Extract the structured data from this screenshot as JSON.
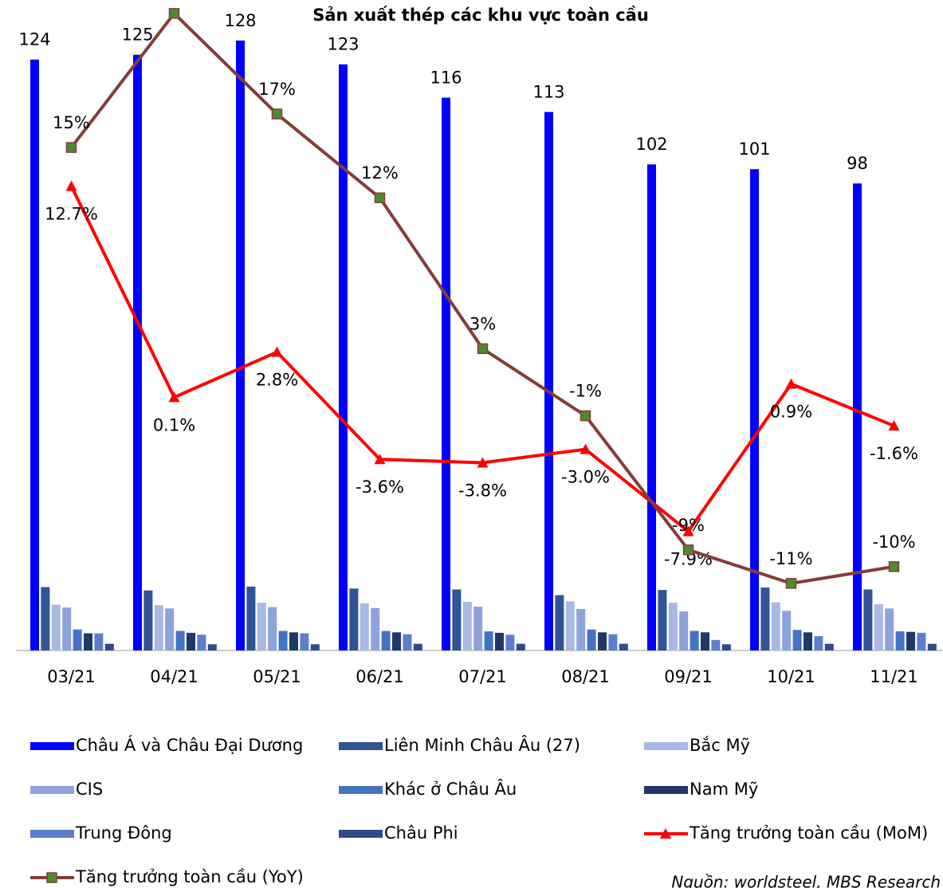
{
  "chart_data": {
    "type": "bar",
    "title": "Sản xuất thép các khu vực toàn cầu",
    "categories": [
      "03/21",
      "04/21",
      "05/21",
      "06/21",
      "07/21",
      "08/21",
      "09/21",
      "10/21",
      "11/21"
    ],
    "ylim": [
      0,
      136.5
    ],
    "y2lim": [
      -15,
      23.8
    ],
    "series": [
      {
        "name": "Châu Á và Châu Đại Dương",
        "type": "bar",
        "color": "#0000ff",
        "values": [
          124,
          125,
          128,
          123,
          116,
          113,
          102,
          101,
          98
        ]
      },
      {
        "name": "Liên Minh Châu Âu (27)",
        "type": "bar",
        "color": "#2f5597",
        "values": [
          13.3,
          12.6,
          13.4,
          13.0,
          12.8,
          11.6,
          12.7,
          13.2,
          12.8
        ]
      },
      {
        "name": "Bắc Mỹ",
        "type": "bar",
        "color": "#a9b8e4",
        "values": [
          9.6,
          9.5,
          10.0,
          9.9,
          10.2,
          10.3,
          10.0,
          10.1,
          9.7
        ]
      },
      {
        "name": "CIS",
        "type": "bar",
        "color": "#8ea2dc",
        "values": [
          9.0,
          8.8,
          9.1,
          8.9,
          9.2,
          8.7,
          8.2,
          8.3,
          8.8
        ]
      },
      {
        "name": "Khác ở Châu Âu",
        "type": "bar",
        "color": "#4472c4",
        "values": [
          4.4,
          4.1,
          4.1,
          4.1,
          4.0,
          4.4,
          4.1,
          4.3,
          4.0
        ]
      },
      {
        "name": "Nam Mỹ",
        "type": "bar",
        "color": "#1f3864",
        "values": [
          3.6,
          3.7,
          3.8,
          3.8,
          3.7,
          3.8,
          3.8,
          3.8,
          3.9
        ]
      },
      {
        "name": "Trung Đông",
        "type": "bar",
        "color": "#5b7fce",
        "values": [
          3.6,
          3.3,
          3.6,
          3.4,
          3.3,
          3.4,
          2.2,
          3.0,
          3.7
        ]
      },
      {
        "name": "Châu Phi",
        "type": "bar",
        "color": "#2e4a8a",
        "values": [
          1.4,
          1.3,
          1.3,
          1.4,
          1.4,
          1.4,
          1.3,
          1.4,
          1.4
        ]
      },
      {
        "name": "Tăng trưởng toàn cầu (MoM)",
        "type": "line",
        "axis": "y2",
        "color": "#ff0000",
        "marker": "triangle",
        "values": [
          12.7,
          0.1,
          2.8,
          -3.6,
          -3.8,
          -3.0,
          -7.9,
          0.9,
          -1.6
        ],
        "value_labels": [
          "12.7%",
          "0.1%",
          "2.8%",
          "-3.6%",
          "-3.8%",
          "-3.0%",
          "-7.9%",
          "0.9%",
          "-1.6%"
        ]
      },
      {
        "name": "Tăng trưởng toàn cầu (YoY)",
        "type": "line",
        "axis": "y2",
        "color": "#843c39",
        "marker": "square",
        "marker_color": "#4e8a2e",
        "values": [
          15,
          23,
          17,
          12,
          3,
          -1,
          -9,
          -11,
          -10
        ],
        "value_labels": [
          "15%",
          "23%",
          "17%",
          "12%",
          "3%",
          "-1%",
          "-9%",
          "-11%",
          "-10%"
        ]
      }
    ],
    "source": "Nguồn: worldsteel, MBS Research"
  }
}
